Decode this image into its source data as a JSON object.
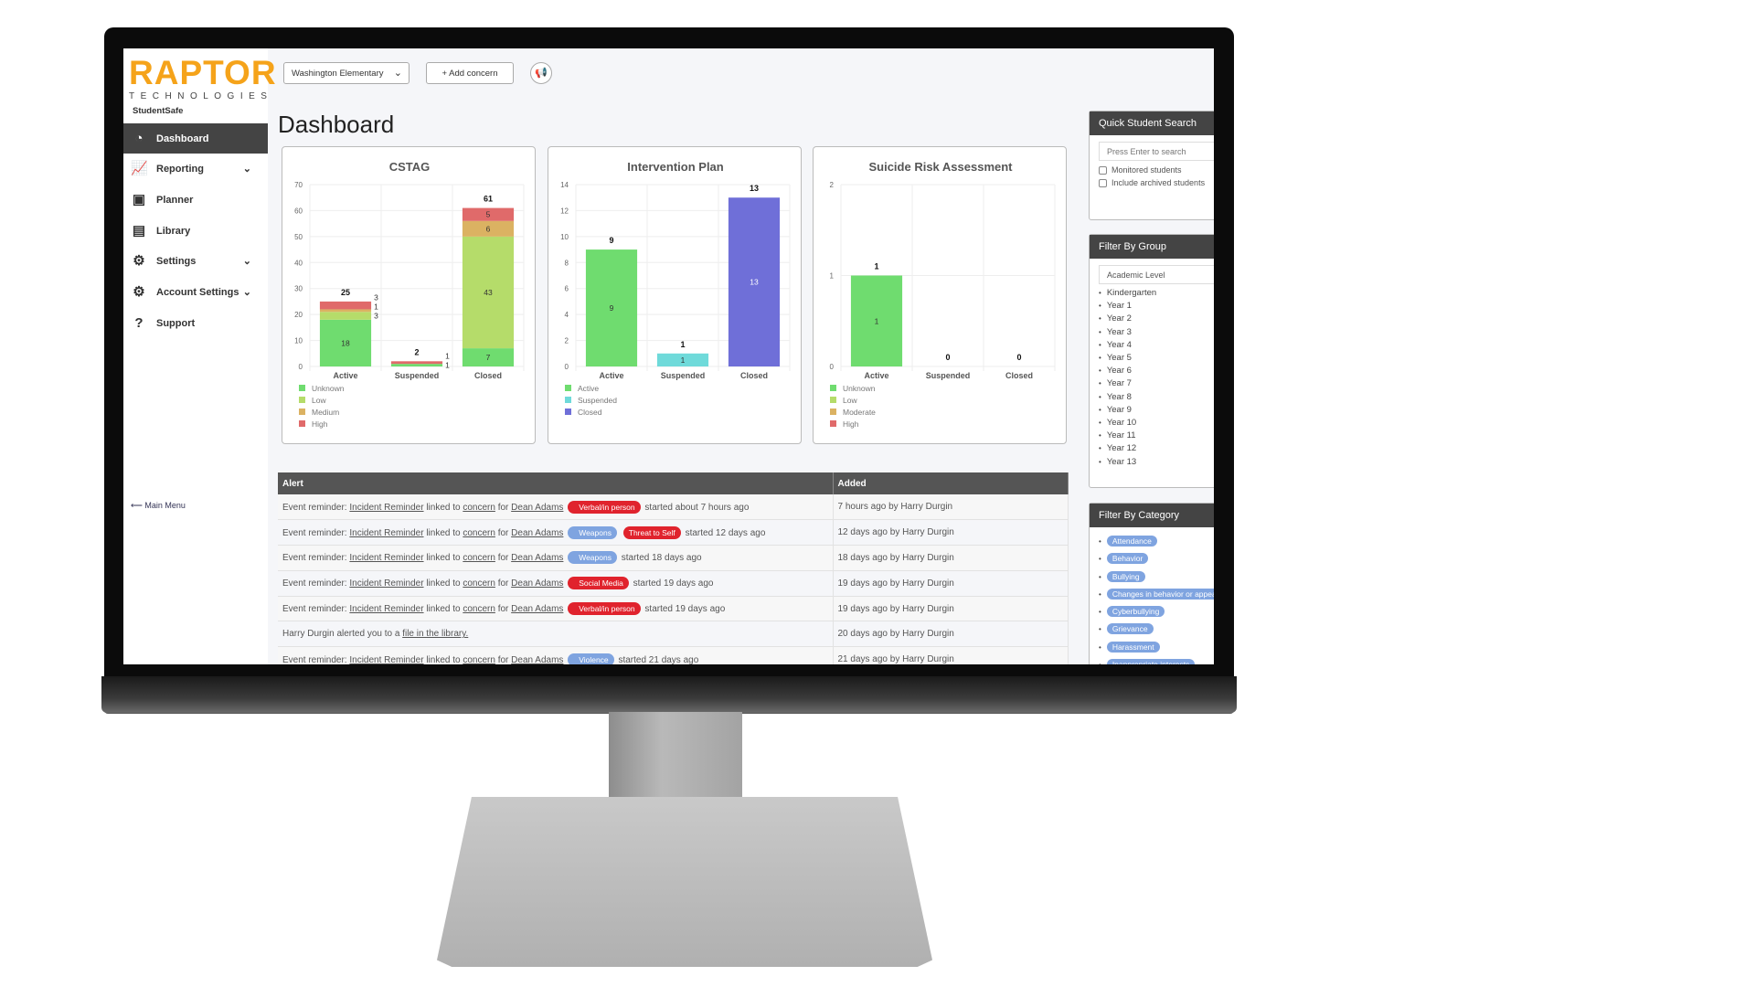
{
  "sidebar": {
    "logo": "RAPTOR",
    "logo_sub": "TECHNOLOGIES",
    "app_name": "StudentSafe",
    "items": [
      {
        "label": "Dashboard",
        "icon": "dashboard-gauge-icon",
        "active": true
      },
      {
        "label": "Reporting",
        "icon": "line-chart-icon",
        "expandable": true
      },
      {
        "label": "Planner",
        "icon": "calendar-icon"
      },
      {
        "label": "Library",
        "icon": "book-icon"
      },
      {
        "label": "Settings",
        "icon": "gear-icon",
        "expandable": true
      },
      {
        "label": "Account Settings",
        "icon": "gears-icon",
        "expandable": true
      },
      {
        "label": "Support",
        "icon": "question-icon"
      }
    ],
    "main_menu": "⟵ Main Menu"
  },
  "topbar": {
    "school_select": "Washington Elementary",
    "add_concern": "+ Add concern",
    "announce_icon": "megaphone-icon"
  },
  "page_title": "Dashboard",
  "chart_data": [
    {
      "type": "bar",
      "stacked": true,
      "title": "CSTAG",
      "categories": [
        "Active",
        "Suspended",
        "Closed"
      ],
      "ylim": [
        0,
        70
      ],
      "yticks": [
        0,
        10,
        20,
        30,
        40,
        50,
        60,
        70
      ],
      "totals": [
        25,
        2,
        61
      ],
      "series": [
        {
          "name": "Unknown",
          "color": "#6fdc6f",
          "values": [
            18,
            1,
            7
          ]
        },
        {
          "name": "Low",
          "color": "#b5dc6a",
          "values": [
            3,
            0,
            43
          ]
        },
        {
          "name": "Medium",
          "color": "#dbb262",
          "values": [
            1,
            0,
            6
          ]
        },
        {
          "name": "High",
          "color": "#e06a6a",
          "values": [
            3,
            1,
            5
          ]
        }
      ]
    },
    {
      "type": "bar",
      "stacked": true,
      "title": "Intervention Plan",
      "categories": [
        "Active",
        "Suspended",
        "Closed"
      ],
      "ylim": [
        0,
        14
      ],
      "yticks": [
        0,
        2,
        4,
        6,
        8,
        10,
        12,
        14
      ],
      "totals": [
        9,
        1,
        13
      ],
      "series": [
        {
          "name": "Active",
          "color": "#6fdc6f",
          "values": [
            9,
            0,
            0
          ]
        },
        {
          "name": "Suspended",
          "color": "#6fdada",
          "values": [
            0,
            1,
            0
          ]
        },
        {
          "name": "Closed",
          "color": "#6f6fd8",
          "values": [
            0,
            0,
            13
          ]
        }
      ]
    },
    {
      "type": "bar",
      "stacked": true,
      "title": "Suicide Risk Assessment",
      "categories": [
        "Active",
        "Suspended",
        "Closed"
      ],
      "ylim": [
        0,
        2
      ],
      "yticks": [
        0,
        1,
        2
      ],
      "totals": [
        1,
        0,
        0
      ],
      "series": [
        {
          "name": "Unknown",
          "color": "#6fdc6f",
          "values": [
            1,
            0,
            0
          ]
        },
        {
          "name": "Low",
          "color": "#b5dc6a",
          "values": [
            0,
            0,
            0
          ]
        },
        {
          "name": "Moderate",
          "color": "#dbb262",
          "values": [
            0,
            0,
            0
          ]
        },
        {
          "name": "High",
          "color": "#e06a6a",
          "values": [
            0,
            0,
            0
          ]
        }
      ]
    }
  ],
  "alerts": {
    "headers": [
      "Alert",
      "Added"
    ],
    "rows": [
      {
        "type": "reminder",
        "tags": [
          {
            "label": "Verbal/in person",
            "color": "red"
          }
        ],
        "started": "started about 7 hours ago",
        "added": "7 hours ago by Harry Durgin"
      },
      {
        "type": "reminder",
        "tags": [
          {
            "label": "Weapons",
            "color": "blue"
          },
          {
            "label": "Threat to Self",
            "color": "red",
            "plain": true
          }
        ],
        "started": "started 12 days ago",
        "added": "12 days ago by Harry Durgin"
      },
      {
        "type": "reminder",
        "tags": [
          {
            "label": "Weapons",
            "color": "blue"
          }
        ],
        "started": "started 18 days ago",
        "added": "18 days ago by Harry Durgin"
      },
      {
        "type": "reminder",
        "tags": [
          {
            "label": "Social Media",
            "color": "red"
          }
        ],
        "started": "started 19 days ago",
        "added": "19 days ago by Harry Durgin"
      },
      {
        "type": "reminder",
        "tags": [
          {
            "label": "Verbal/in person",
            "color": "red"
          }
        ],
        "started": "started 19 days ago",
        "added": "19 days ago by Harry Durgin"
      },
      {
        "type": "file",
        "text": "Harry Durgin alerted you to a",
        "link": "file in the library.",
        "added": "20 days ago by Harry Durgin"
      },
      {
        "type": "reminder",
        "tags": [
          {
            "label": "Violence",
            "color": "blue"
          }
        ],
        "started": "started 21 days ago",
        "added": "21 days ago by Harry Durgin"
      }
    ],
    "reminder_prefix": "Event reminder:",
    "reminder_link": "Incident Reminder",
    "linked_to": "linked to",
    "concern_link": "concern",
    "for": "for",
    "student": "Dean Adams"
  },
  "quick_search": {
    "title": "Quick Student Search",
    "placeholder": "Press Enter to search",
    "monitored": "Monitored students",
    "archived": "Include archived students"
  },
  "filter_group": {
    "title": "Filter By Group",
    "select": "Academic Level",
    "items": [
      "Kindergarten",
      "Year 1",
      "Year 2",
      "Year 3",
      "Year 4",
      "Year 5",
      "Year 6",
      "Year 7",
      "Year 8",
      "Year 9",
      "Year 10",
      "Year 11",
      "Year 12",
      "Year 13"
    ]
  },
  "filter_category": {
    "title": "Filter By Category",
    "items": [
      "Attendance",
      "Behavior",
      "Bullying",
      "Changes in behavior or appearance",
      "Cyberbullying",
      "Grievance",
      "Harassment",
      "Inappropriate interests"
    ]
  }
}
